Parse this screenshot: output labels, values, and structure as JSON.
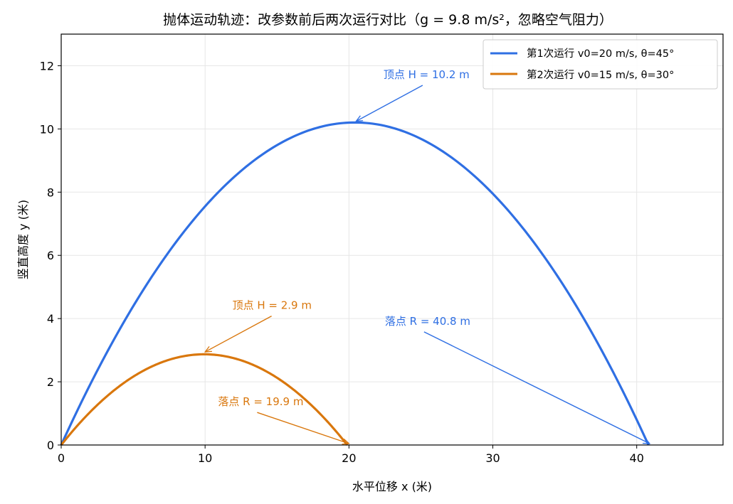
{
  "chart_data": {
    "type": "line",
    "title": "抛体运动轨迹：改参数前后两次运行对比（g = 9.8 m/s²，忽略空气阻力）",
    "xlabel": "水平位移 x (米)",
    "ylabel": "竖直高度 y (米)",
    "xlim": [
      0,
      46
    ],
    "ylim": [
      0,
      13
    ],
    "x_ticks": [
      0,
      10,
      20,
      30,
      40
    ],
    "y_ticks": [
      0,
      2,
      4,
      6,
      8,
      10,
      12
    ],
    "grid": true,
    "legend": "top-right",
    "g": 9.8,
    "series": [
      {
        "name": "第1次运行 v0=20 m/s, θ=45°",
        "v0": 20,
        "angle_deg": 45,
        "color": "#2f6fe3",
        "apex": {
          "x": 20.4,
          "y": 10.2
        },
        "landing": {
          "x": 40.8,
          "y": 0
        }
      },
      {
        "name": "第2次运行 v0=15 m/s, θ=30°",
        "v0": 15,
        "angle_deg": 30,
        "color": "#d9770d",
        "apex": {
          "x": 9.9,
          "y": 2.9
        },
        "landing": {
          "x": 19.9,
          "y": 0
        }
      }
    ],
    "annotations": [
      {
        "series": 0,
        "text": "顶点 H = 10.2 m",
        "point": [
          20.4,
          10.2
        ],
        "label_at": [
          22.4,
          11.2
        ]
      },
      {
        "series": 0,
        "text": "落点 R = 40.8 m",
        "point": [
          40.8,
          0
        ],
        "label_at": [
          22.5,
          3.4
        ]
      },
      {
        "series": 1,
        "text": "顶点 H = 2.9 m",
        "point": [
          9.9,
          2.9
        ],
        "label_at": [
          11.9,
          3.9
        ]
      },
      {
        "series": 1,
        "text": "落点 R = 19.9 m",
        "point": [
          19.9,
          0
        ],
        "label_at": [
          10.9,
          0.85
        ]
      }
    ]
  }
}
